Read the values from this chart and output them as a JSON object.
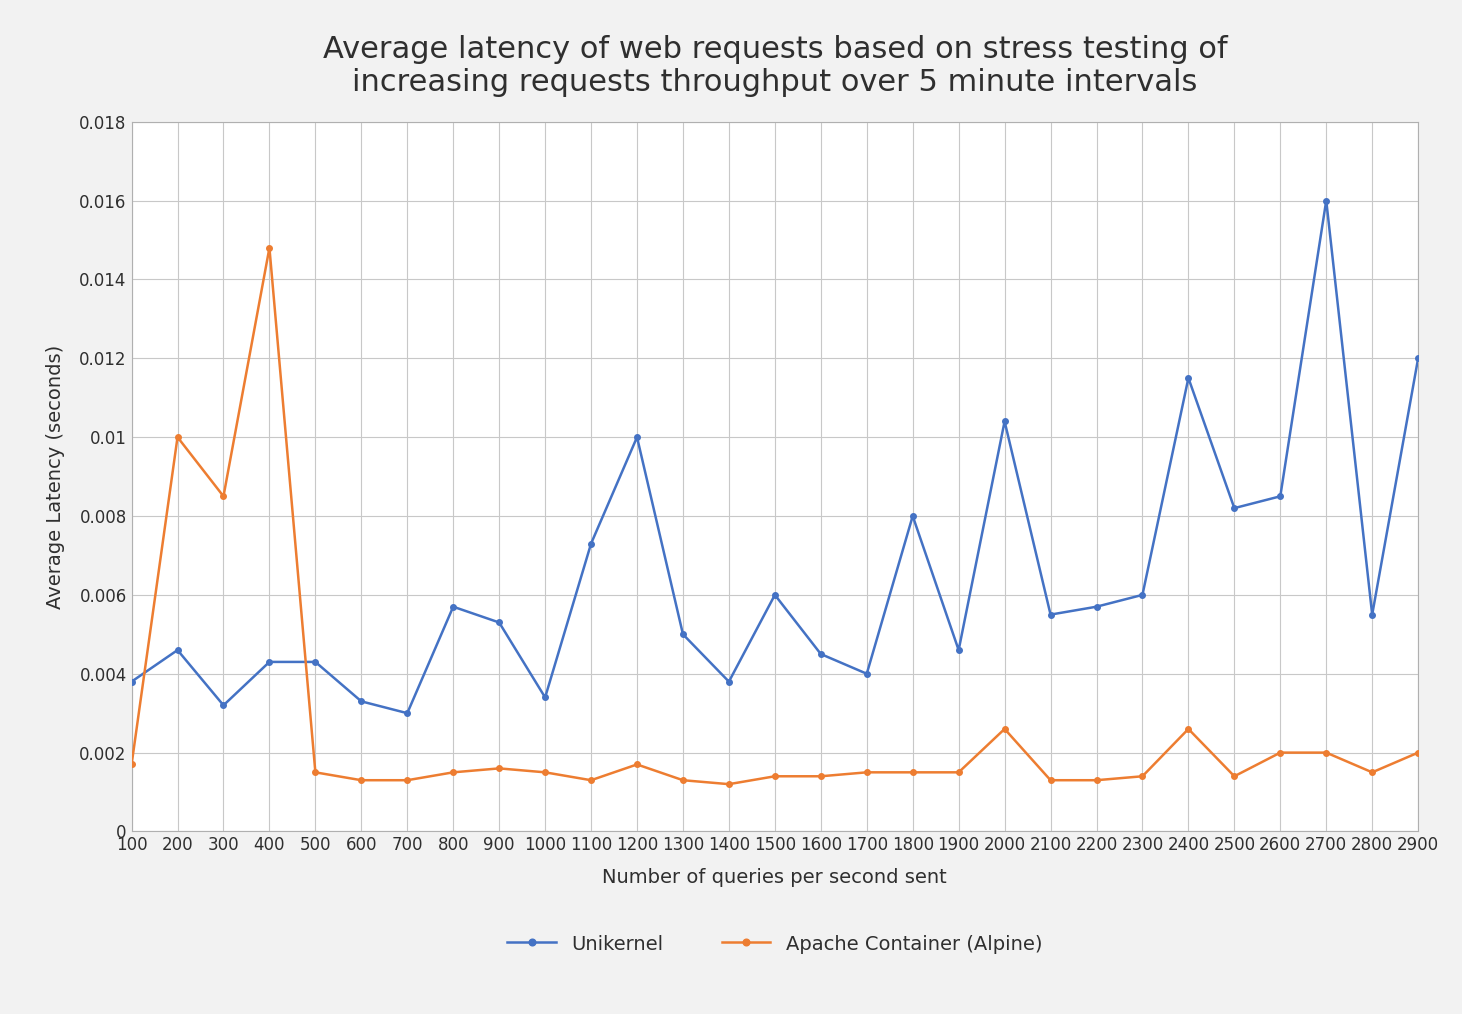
{
  "title": "Average latency of web requests based on stress testing of\nincreasing requests throughput over 5 minute intervals",
  "xlabel": "Number of queries per second sent",
  "ylabel": "Average Latency (seconds)",
  "x_values": [
    100,
    200,
    300,
    400,
    500,
    600,
    700,
    800,
    900,
    1000,
    1100,
    1200,
    1300,
    1400,
    1500,
    1600,
    1700,
    1800,
    1900,
    2000,
    2100,
    2200,
    2300,
    2400,
    2500,
    2600,
    2700,
    2800,
    2900
  ],
  "unikernel": [
    0.0038,
    0.0046,
    0.0032,
    0.0043,
    0.0043,
    0.0033,
    0.003,
    0.0057,
    0.0053,
    0.0034,
    0.0073,
    0.01,
    0.005,
    0.0038,
    0.006,
    0.0045,
    0.004,
    0.008,
    0.0046,
    0.0104,
    0.0055,
    0.0057,
    0.006,
    0.0115,
    0.0082,
    0.0085,
    0.016,
    0.0055,
    0.012
  ],
  "apache": [
    0.0017,
    0.01,
    0.0085,
    0.0148,
    0.0015,
    0.0013,
    0.0013,
    0.0015,
    0.0016,
    0.0015,
    0.0013,
    0.0017,
    0.0013,
    0.0012,
    0.0014,
    0.0014,
    0.0015,
    0.0015,
    0.0015,
    0.0026,
    0.0013,
    0.0013,
    0.0014,
    0.0026,
    0.0014,
    0.002,
    0.002,
    0.0015,
    0.002
  ],
  "unikernel_color": "#4472C4",
  "apache_color": "#ED7D31",
  "unikernel_label": "Unikernel",
  "apache_label": "Apache Container (Alpine)",
  "ylim": [
    0,
    0.018
  ],
  "yticks": [
    0,
    0.002,
    0.004,
    0.006,
    0.008,
    0.01,
    0.012,
    0.014,
    0.016,
    0.018
  ],
  "background_color": "#f2f2f2",
  "plot_bg_color": "#ffffff",
  "grid_color": "#c8c8c8",
  "title_fontsize": 22,
  "axis_label_fontsize": 14,
  "tick_fontsize": 12,
  "legend_fontsize": 14,
  "line_width": 1.8,
  "marker_size": 4
}
